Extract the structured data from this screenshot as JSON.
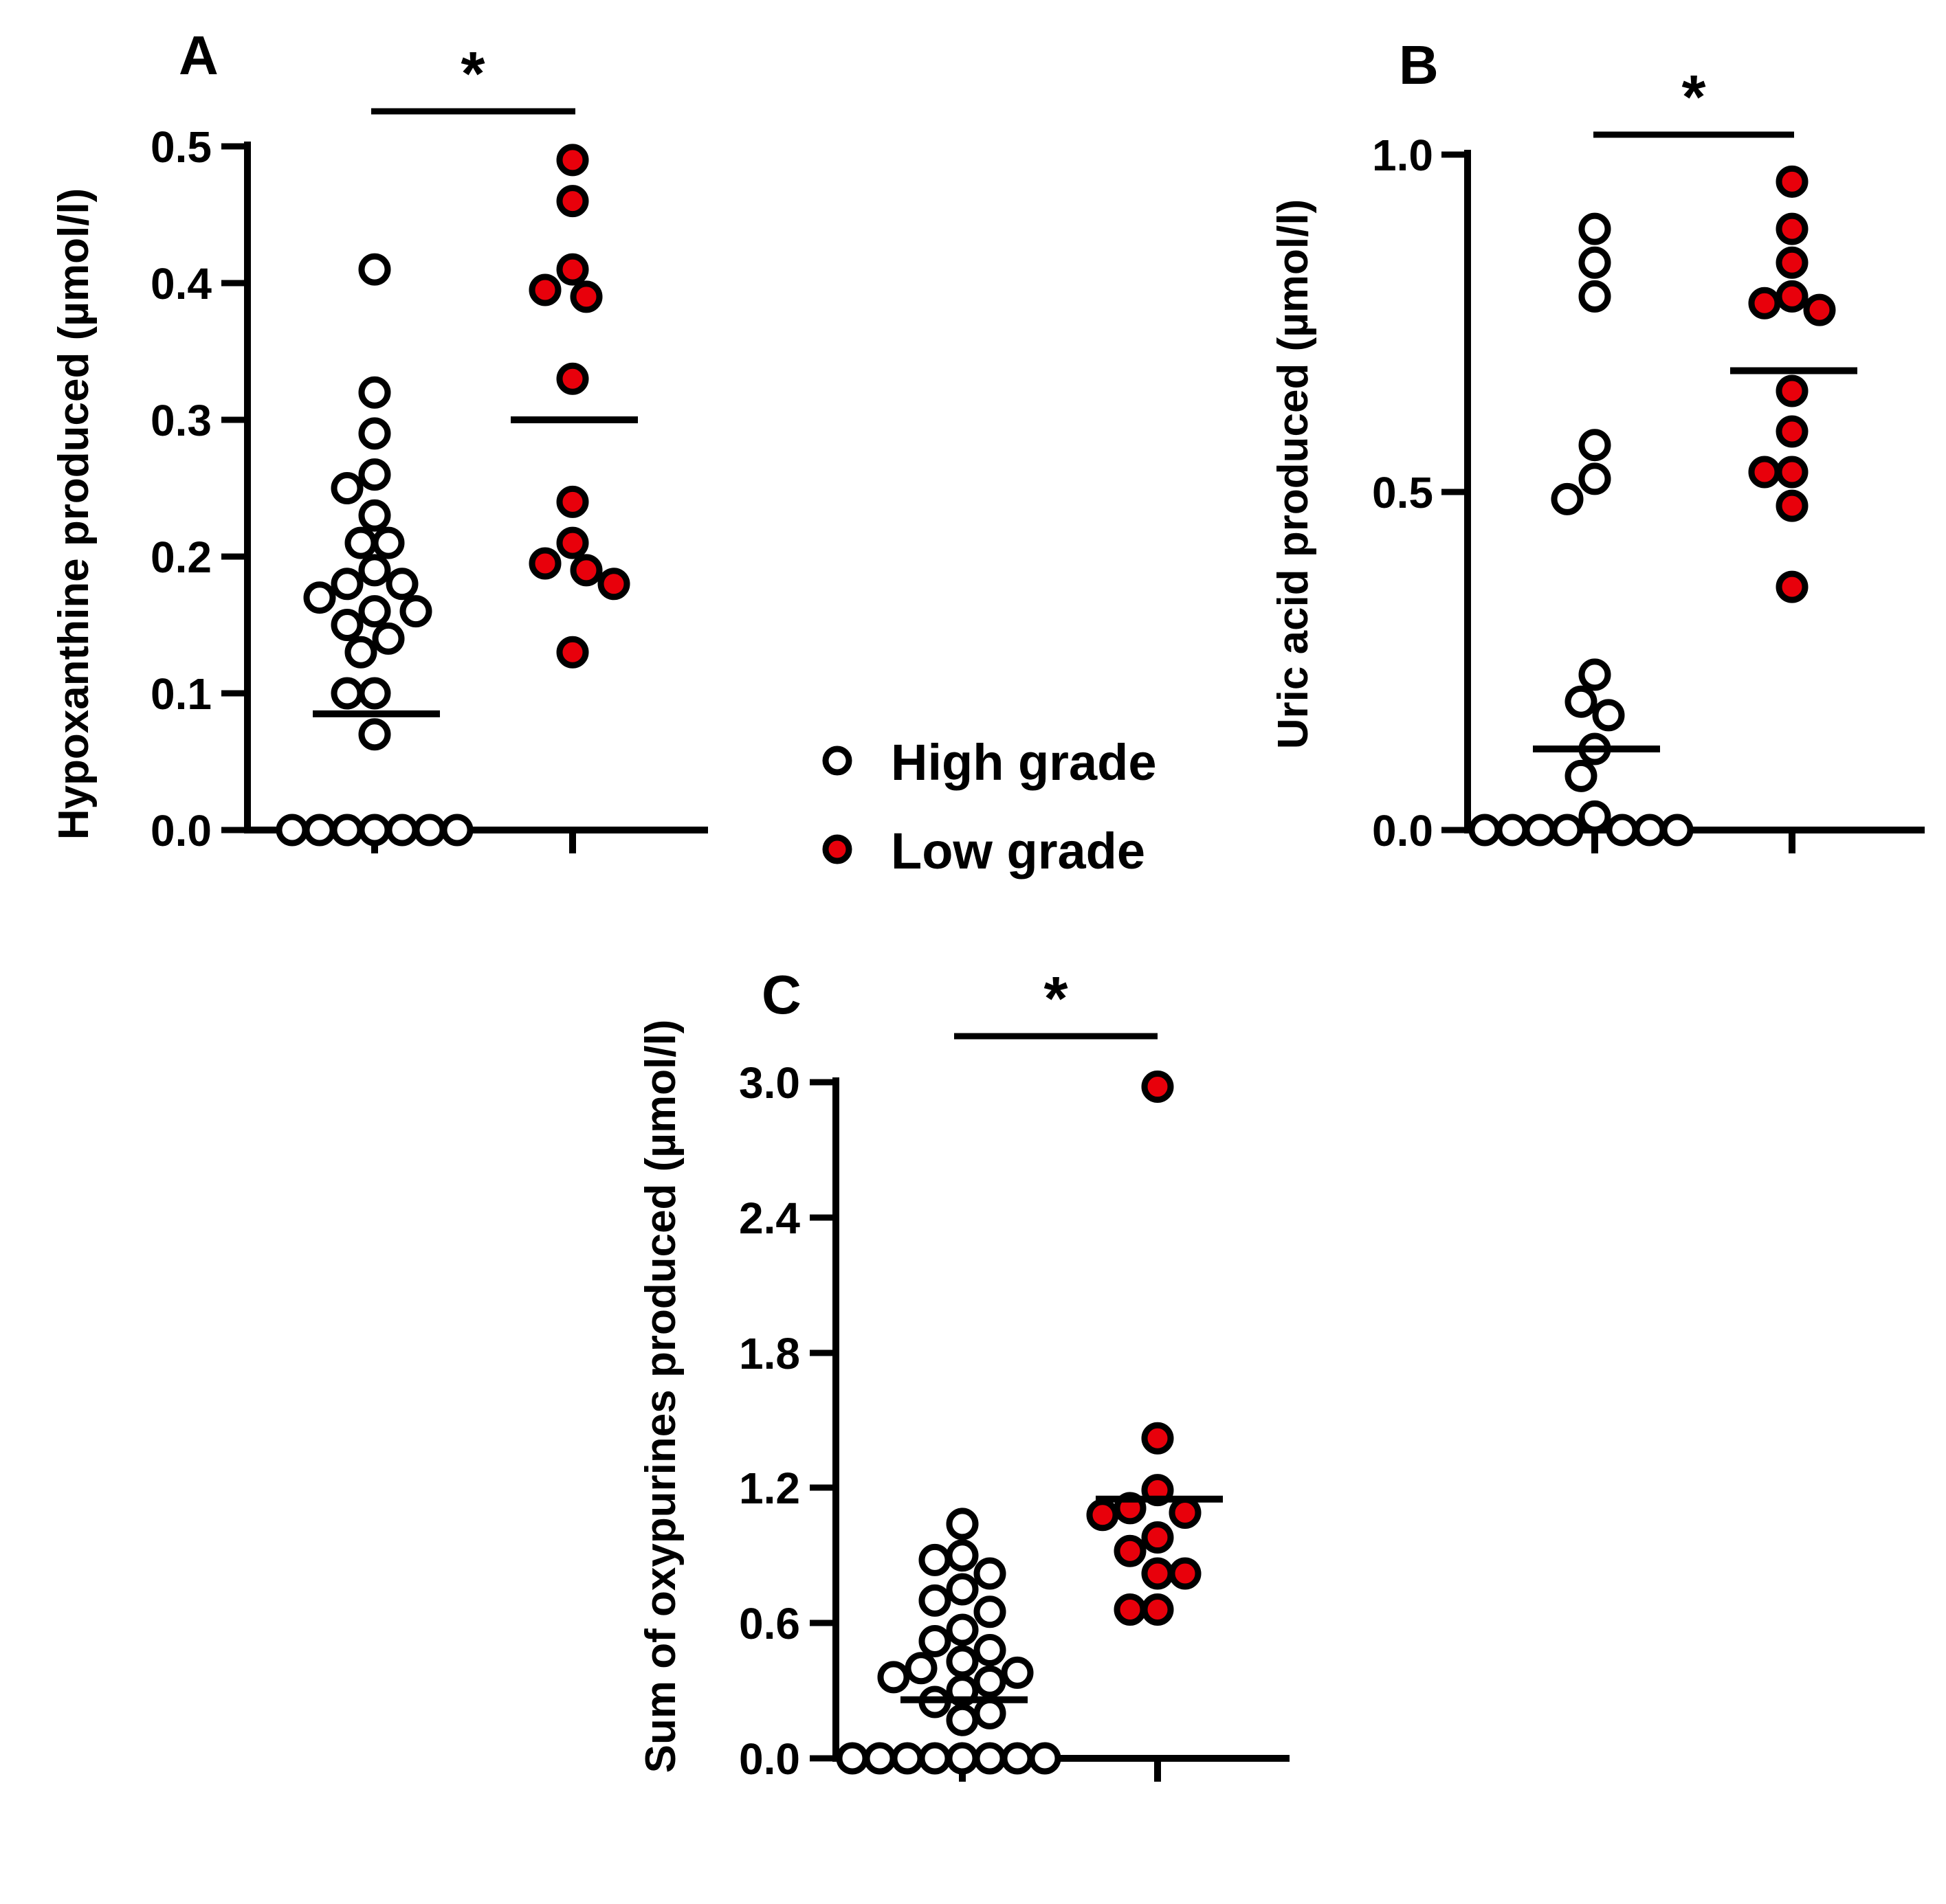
{
  "colors": {
    "high": "#ffffff",
    "low": "#e8000b",
    "stroke": "#000000"
  },
  "legend": [
    {
      "key": "high",
      "label": "High grade"
    },
    {
      "key": "low",
      "label": "Low grade"
    }
  ],
  "chart_data": [
    {
      "type": "scatter",
      "panel": "A",
      "significance": "*",
      "ylabel": "Hypoxanthine produced (µmol/l)",
      "ylim": [
        0,
        0.5
      ],
      "yticks": [
        0.0,
        0.1,
        0.2,
        0.3,
        0.4,
        0.5
      ],
      "tick_labels": [
        "0.0",
        "0.1",
        "0.2",
        "0.3",
        "0.4",
        "0.5"
      ],
      "categories": [
        "High grade",
        "Low grade"
      ],
      "series": [
        {
          "name": "High grade",
          "key": "high",
          "mean": 0.085,
          "values": [
            0.41,
            0.32,
            0.29,
            0.26,
            0.25,
            0.23,
            0.21,
            0.21,
            0.19,
            0.18,
            0.18,
            0.17,
            0.16,
            0.16,
            0.15,
            0.14,
            0.13,
            0.1,
            0.1,
            0.07,
            0,
            0,
            0,
            0,
            0,
            0,
            0
          ]
        },
        {
          "name": "Low grade",
          "key": "low",
          "mean": 0.3,
          "values": [
            0.49,
            0.46,
            0.41,
            0.395,
            0.39,
            0.33,
            0.24,
            0.21,
            0.195,
            0.19,
            0.18,
            0.13
          ]
        }
      ]
    },
    {
      "type": "scatter",
      "panel": "B",
      "significance": "*",
      "ylabel": "Uric acid produced (µmol/l)",
      "ylim": [
        0,
        1.0
      ],
      "yticks": [
        0.0,
        0.5,
        1.0
      ],
      "tick_labels": [
        "0.0",
        "0.5",
        "1.0"
      ],
      "categories": [
        "High grade",
        "Low grade"
      ],
      "series": [
        {
          "name": "High grade",
          "key": "high",
          "mean": 0.12,
          "values": [
            0.89,
            0.84,
            0.79,
            0.57,
            0.52,
            0.49,
            0.23,
            0.19,
            0.17,
            0.12,
            0.08,
            0.02,
            0,
            0,
            0,
            0,
            0,
            0,
            0
          ]
        },
        {
          "name": "Low grade",
          "key": "low",
          "mean": 0.68,
          "values": [
            0.96,
            0.89,
            0.84,
            0.79,
            0.78,
            0.77,
            0.65,
            0.59,
            0.53,
            0.53,
            0.48,
            0.36
          ]
        }
      ]
    },
    {
      "type": "scatter",
      "panel": "C",
      "significance": "*",
      "ylabel": "Sum of oxypurines produced (µmol/l)",
      "ylim": [
        0,
        3.0
      ],
      "yticks": [
        0.0,
        0.6,
        1.2,
        1.8,
        2.4,
        3.0
      ],
      "tick_labels": [
        "0.0",
        "0.6",
        "1.2",
        "1.8",
        "2.4",
        "3.0"
      ],
      "categories": [
        "High grade",
        "Low grade"
      ],
      "series": [
        {
          "name": "High grade",
          "key": "high",
          "mean": 0.26,
          "values": [
            1.04,
            0.9,
            0.88,
            0.82,
            0.75,
            0.7,
            0.65,
            0.57,
            0.52,
            0.48,
            0.43,
            0.4,
            0.38,
            0.36,
            0.34,
            0.3,
            0.25,
            0.2,
            0.17,
            0,
            0,
            0,
            0,
            0,
            0,
            0,
            0
          ]
        },
        {
          "name": "Low grade",
          "key": "low",
          "mean": 1.15,
          "values": [
            2.98,
            1.42,
            1.19,
            1.11,
            1.09,
            1.08,
            0.98,
            0.92,
            0.82,
            0.82,
            0.66,
            0.66
          ]
        }
      ]
    }
  ]
}
